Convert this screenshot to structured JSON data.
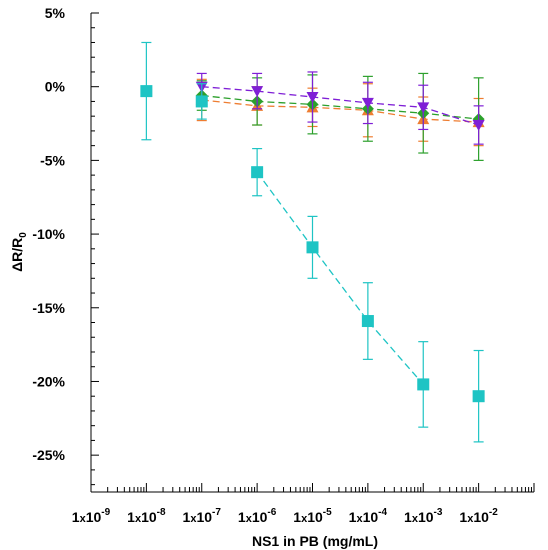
{
  "chart_data": {
    "type": "scatter",
    "title": "",
    "xlabel": "NS1 in PB (mg/mL)",
    "ylabel_main": "ΔR/R",
    "ylabel_sub": "0",
    "x_scale": "log",
    "xlim": [
      1e-09,
      0.1
    ],
    "ylim": [
      -27.5,
      5
    ],
    "y_unit": "%",
    "x_ticks": [
      {
        "value": 1e-09,
        "mantissa": "1",
        "times": "x",
        "base": "10",
        "exp": "-9"
      },
      {
        "value": 1e-08,
        "mantissa": "1",
        "times": "x",
        "base": "10",
        "exp": "-8"
      },
      {
        "value": 1e-07,
        "mantissa": "1",
        "times": "x",
        "base": "10",
        "exp": "-7"
      },
      {
        "value": 1e-06,
        "mantissa": "1",
        "times": "x",
        "base": "10",
        "exp": "-6"
      },
      {
        "value": 1e-05,
        "mantissa": "1",
        "times": "x",
        "base": "10",
        "exp": "-5"
      },
      {
        "value": 0.0001,
        "mantissa": "1",
        "times": "x",
        "base": "10",
        "exp": "-4"
      },
      {
        "value": 0.001,
        "mantissa": "1",
        "times": "x",
        "base": "10",
        "exp": "-3"
      },
      {
        "value": 0.01,
        "mantissa": "1",
        "times": "x",
        "base": "10",
        "exp": "-2"
      }
    ],
    "y_ticks": [
      {
        "value": 5,
        "label": "5%"
      },
      {
        "value": 0,
        "label": "0%"
      },
      {
        "value": -5,
        "label": "-5%"
      },
      {
        "value": -10,
        "label": "-10%"
      },
      {
        "value": -15,
        "label": "-15%"
      },
      {
        "value": -20,
        "label": "-20%"
      },
      {
        "value": -25,
        "label": "-25%"
      }
    ],
    "grid": false,
    "legend": "none",
    "series": [
      {
        "color": "#ee7d31",
        "marker": "triangle-up",
        "line": "dashed",
        "connect": true,
        "x": [
          1e-07,
          1e-06,
          1e-05,
          0.0001,
          0.001,
          0.01
        ],
        "y": [
          -0.9,
          -1.3,
          -1.4,
          -1.6,
          -2.2,
          -2.4
        ],
        "err": [
          1.4,
          1.3,
          1.3,
          1.8,
          1.5,
          1.6
        ]
      },
      {
        "color": "#2ca02c",
        "marker": "diamond",
        "line": "dashed",
        "connect": true,
        "x": [
          1e-07,
          1e-06,
          1e-05,
          0.0001,
          0.001,
          0.01
        ],
        "y": [
          -0.6,
          -1.0,
          -1.2,
          -1.5,
          -1.8,
          -2.2
        ],
        "err": [
          1.0,
          1.6,
          2.0,
          2.2,
          2.7,
          2.8
        ]
      },
      {
        "color": "#7f1fd6",
        "marker": "triangle-down",
        "line": "dashed",
        "connect": true,
        "x": [
          1e-07,
          1e-06,
          1e-05,
          0.0001,
          0.001,
          0.01
        ],
        "y": [
          0.0,
          -0.3,
          -0.7,
          -1.1,
          -1.4,
          -2.6
        ],
        "err": [
          0.9,
          1.2,
          1.7,
          1.4,
          1.5,
          1.3
        ]
      },
      {
        "color": "#1ec4c4",
        "marker": "square",
        "line": "dashed",
        "connect": true,
        "x": [
          1e-08,
          1e-07,
          1e-06,
          1e-05,
          0.0001,
          0.001,
          0.01
        ],
        "y": [
          -0.3,
          -1.0,
          -5.8,
          -10.9,
          -15.9,
          -20.2,
          -21.0
        ],
        "err": [
          3.3,
          1.2,
          1.6,
          2.1,
          2.6,
          2.9,
          3.1
        ],
        "connect_from": 1e-06,
        "connect_to": 0.001
      }
    ]
  }
}
